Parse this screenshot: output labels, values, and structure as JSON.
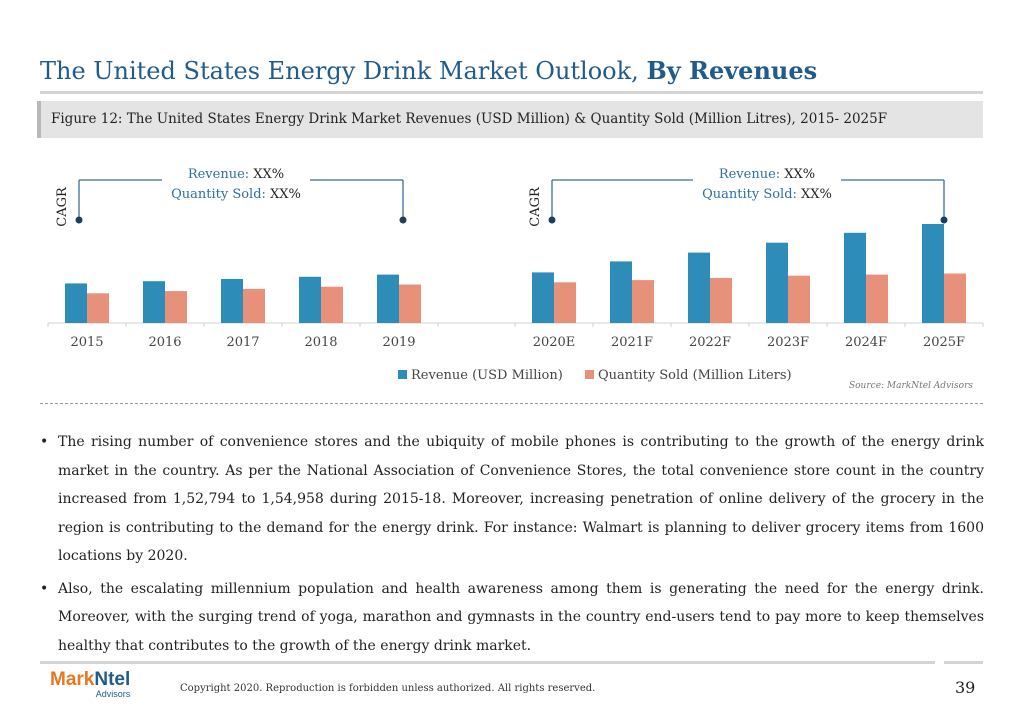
{
  "page": {
    "title_main": "The United States Energy Drink Market Outlook, ",
    "title_bold": "By Revenues",
    "figure_caption": "Figure 12: The United States Energy Drink Market Revenues (USD Million) & Quantity Sold (Million Litres), 2015- 2025F",
    "source": "Source: MarkNtel Advisors",
    "bullets": [
      "The rising number of convenience stores and the ubiquity of mobile phones is contributing to the growth of the energy drink market in the country. As per the National Association of Convenience Stores, the total convenience store count in the country increased from 1,52,794 to 1,54,958 during 2015-18. Moreover, increasing penetration of online delivery of the grocery in the region is contributing to the demand for the energy drink. For instance: Walmart is planning to deliver grocery items from 1600 locations by 2020.",
      "Also, the escalating millennium population and health awareness among them is generating the need for the energy drink. Moreover, with the surging trend of yoga, marathon and gymnasts in the country end-users tend to pay more to keep themselves healthy that contributes to the growth of the energy drink market."
    ],
    "bullet_char": "•",
    "logo_mark": "Mark",
    "logo_ntel": "Ntel",
    "logo_sub": "Advisors",
    "copyright": "Copyright 2020. Reproduction is forbidden unless authorized. All rights reserved.",
    "page_number": "39"
  },
  "colors": {
    "revenue": "#2e8db8",
    "quantity": "#e8917a",
    "accent": "#1f5c8b",
    "annotation_line": "#3a6e96"
  },
  "chart_data": {
    "type": "bar",
    "categories": [
      "2015",
      "2016",
      "2017",
      "2018",
      "2019",
      "2020E",
      "2021F",
      "2022F",
      "2023F",
      "2024F",
      "2025F"
    ],
    "series": [
      {
        "name": "Revenue (USD Million)",
        "values": [
          36,
          38,
          40,
          42,
          44,
          46,
          56,
          64,
          73,
          82,
          90
        ]
      },
      {
        "name": "Quantity Sold (Million Liters)",
        "values": [
          27,
          29,
          31,
          33,
          35,
          37,
          39,
          41,
          43,
          44,
          45
        ]
      }
    ],
    "ylim": [
      0,
      100
    ],
    "grid": false,
    "legend_position": "bottom",
    "annotations": [
      {
        "side": "left",
        "label": "CAGR",
        "revenue_label": "Revenue:",
        "revenue_value": "XX%",
        "qty_label": "Quantity Sold:",
        "qty_value": "XX%"
      },
      {
        "side": "right",
        "label": "CAGR",
        "revenue_label": "Revenue:",
        "revenue_value": "XX%",
        "qty_label": "Quantity Sold:",
        "qty_value": "XX%"
      }
    ]
  }
}
